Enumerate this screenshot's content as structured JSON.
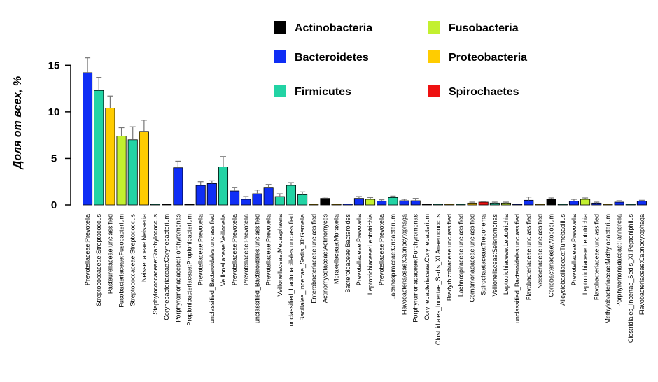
{
  "chart_data": {
    "type": "bar",
    "title": "",
    "xlabel": "",
    "ylabel": "Доля от всех, %",
    "ylim": [
      0,
      16
    ],
    "yticks": [
      0,
      5,
      10,
      15
    ],
    "grid": false,
    "legend_position": "top",
    "phyla": [
      {
        "name": "Actinobacteria",
        "color": "#000000"
      },
      {
        "name": "Fusobacteria",
        "color": "#c3f02f"
      },
      {
        "name": "Bacteroidetes",
        "color": "#0f2ef5"
      },
      {
        "name": "Proteobacteria",
        "color": "#ffcc00"
      },
      {
        "name": "Firmicutes",
        "color": "#22d3a4"
      },
      {
        "name": "Spirochaetes",
        "color": "#ee1111"
      }
    ],
    "bars": [
      {
        "label": "Prevotellaceae:Prevotella",
        "value": 14.2,
        "error": 1.6,
        "phylum": "Bacteroidetes"
      },
      {
        "label": "Streptococcaceae:Streptococcus",
        "value": 12.3,
        "error": 1.4,
        "phylum": "Firmicutes"
      },
      {
        "label": "Pasteurellaceae:unclassified",
        "value": 10.4,
        "error": 1.3,
        "phylum": "Proteobacteria"
      },
      {
        "label": "Fusobacteriaceae:Fusobacterium",
        "value": 7.4,
        "error": 0.9,
        "phylum": "Fusobacteria"
      },
      {
        "label": "Streptococcaceae:Streptococcus",
        "value": 7.0,
        "error": 1.4,
        "phylum": "Firmicutes"
      },
      {
        "label": "Neisseriaceae:Neisseria",
        "value": 7.9,
        "error": 1.2,
        "phylum": "Proteobacteria"
      },
      {
        "label": "Staphylococcaceae:Staphylococcus",
        "value": 0.04,
        "error": 0.0,
        "phylum": "Firmicutes"
      },
      {
        "label": "Corynebacteriaceae:Corynebacterium",
        "value": 0.04,
        "error": 0.0,
        "phylum": "Actinobacteria"
      },
      {
        "label": "Porphyromonadaceae:Porphyromonas",
        "value": 4.0,
        "error": 0.7,
        "phylum": "Bacteroidetes"
      },
      {
        "label": "Propionibacteriaceae:Propionibacterium",
        "value": 0.1,
        "error": 0.0,
        "phylum": "Actinobacteria"
      },
      {
        "label": "Prevotellaceae:Prevotella",
        "value": 2.1,
        "error": 0.4,
        "phylum": "Bacteroidetes"
      },
      {
        "label": "unclassified_Bacteroidales:unclassified",
        "value": 2.3,
        "error": 0.3,
        "phylum": "Bacteroidetes"
      },
      {
        "label": "Veillonellaceae:Veillonella",
        "value": 4.1,
        "error": 1.1,
        "phylum": "Firmicutes"
      },
      {
        "label": "Prevotellaceae:Prevotella",
        "value": 1.5,
        "error": 0.4,
        "phylum": "Bacteroidetes"
      },
      {
        "label": "Prevotellaceae:Prevotella",
        "value": 0.6,
        "error": 0.3,
        "phylum": "Bacteroidetes"
      },
      {
        "label": "unclassified_Bacteroidales:unclassified",
        "value": 1.2,
        "error": 0.4,
        "phylum": "Bacteroidetes"
      },
      {
        "label": "Prevotellaceae:Prevotella",
        "value": 1.9,
        "error": 0.3,
        "phylum": "Bacteroidetes"
      },
      {
        "label": "Veillonellaceae:Megasphaera",
        "value": 0.9,
        "error": 0.3,
        "phylum": "Firmicutes"
      },
      {
        "label": "unclassified_Lactobacillales:unclassified",
        "value": 2.1,
        "error": 0.3,
        "phylum": "Firmicutes"
      },
      {
        "label": "Bacillales_Incertae_Sedis_XI:Gemella",
        "value": 1.1,
        "error": 0.3,
        "phylum": "Firmicutes"
      },
      {
        "label": "Enterobacteriaceae:unclassified",
        "value": 0.03,
        "error": 0.0,
        "phylum": "Proteobacteria"
      },
      {
        "label": "Actinomycetaceae:Actinomyces",
        "value": 0.7,
        "error": 0.15,
        "phylum": "Actinobacteria"
      },
      {
        "label": "Moraxellaceae:Moraxella",
        "value": 0.03,
        "error": 0.0,
        "phylum": "Proteobacteria"
      },
      {
        "label": "Bacteroidaceae:Bacteroides",
        "value": 0.1,
        "error": 0.0,
        "phylum": "Bacteroidetes"
      },
      {
        "label": "Prevotellaceae:Prevotella",
        "value": 0.7,
        "error": 0.2,
        "phylum": "Bacteroidetes"
      },
      {
        "label": "Leptotrichiaceae:Leptotrichia",
        "value": 0.6,
        "error": 0.2,
        "phylum": "Fusobacteria"
      },
      {
        "label": "Prevotellaceae:Prevotella",
        "value": 0.4,
        "error": 0.15,
        "phylum": "Bacteroidetes"
      },
      {
        "label": "Lachnospiraceae:Oribacterium",
        "value": 0.8,
        "error": 0.15,
        "phylum": "Firmicutes"
      },
      {
        "label": "Flavobacteriaceae:Capnocytophaga",
        "value": 0.45,
        "error": 0.15,
        "phylum": "Bacteroidetes"
      },
      {
        "label": "Porphyromonadaceae:Porphyromonas",
        "value": 0.45,
        "error": 0.25,
        "phylum": "Bacteroidetes"
      },
      {
        "label": "Corynebacteriaceae:Corynebacterium",
        "value": 0.03,
        "error": 0.0,
        "phylum": "Actinobacteria"
      },
      {
        "label": "Clostridiales_Incertae_Sedis_XI:Anaerococcus",
        "value": 0.03,
        "error": 0.0,
        "phylum": "Firmicutes"
      },
      {
        "label": "Bradyrhizobiaceae:unclassified",
        "value": 0.03,
        "error": 0.0,
        "phylum": "Proteobacteria"
      },
      {
        "label": "Lachnospiraceae:unclassified",
        "value": 0.03,
        "error": 0.0,
        "phylum": "Firmicutes"
      },
      {
        "label": "Comamonadaceae:unclassified",
        "value": 0.2,
        "error": 0.1,
        "phylum": "Proteobacteria"
      },
      {
        "label": "Spirochaetaceae:Treponema",
        "value": 0.3,
        "error": 0.1,
        "phylum": "Spirochaetes"
      },
      {
        "label": "Veillonellaceae:Selenomonas",
        "value": 0.2,
        "error": 0.1,
        "phylum": "Firmicutes"
      },
      {
        "label": "Leptotrichiaceae:Leptotrichia",
        "value": 0.2,
        "error": 0.1,
        "phylum": "Fusobacteria"
      },
      {
        "label": "unclassified_Bacteroidales:unclassified",
        "value": 0.03,
        "error": 0.0,
        "phylum": "Bacteroidetes"
      },
      {
        "label": "Flavobacteriaceae:unclassified",
        "value": 0.5,
        "error": 0.35,
        "phylum": "Bacteroidetes"
      },
      {
        "label": "Neisseriaceae:unclassified",
        "value": 0.03,
        "error": 0.0,
        "phylum": "Proteobacteria"
      },
      {
        "label": "Coriobacteriaceae:Atopobium",
        "value": 0.6,
        "error": 0.15,
        "phylum": "Actinobacteria"
      },
      {
        "label": "Alicyclobacillaceae:Tumebacillus",
        "value": 0.03,
        "error": 0.0,
        "phylum": "Firmicutes"
      },
      {
        "label": "Prevotellaceae:Prevotella",
        "value": 0.4,
        "error": 0.2,
        "phylum": "Bacteroidetes"
      },
      {
        "label": "Leptotrichiaceae:Leptotrichia",
        "value": 0.6,
        "error": 0.15,
        "phylum": "Fusobacteria"
      },
      {
        "label": "Flavobacteriaceae:unclassified",
        "value": 0.2,
        "error": 0.1,
        "phylum": "Bacteroidetes"
      },
      {
        "label": "Methylobacteriaceae:Methylobacterium",
        "value": 0.03,
        "error": 0.0,
        "phylum": "Proteobacteria"
      },
      {
        "label": "Porphyromonadaceae:Tannerella",
        "value": 0.3,
        "error": 0.15,
        "phylum": "Bacteroidetes"
      },
      {
        "label": "Clostridiales_Incertae_Sedis_XI:Peptoniphilus",
        "value": 0.03,
        "error": 0.0,
        "phylum": "Firmicutes"
      },
      {
        "label": "Flavobacteriaceae:Capnocytophaga",
        "value": 0.4,
        "error": 0.1,
        "phylum": "Bacteroidetes"
      }
    ]
  }
}
